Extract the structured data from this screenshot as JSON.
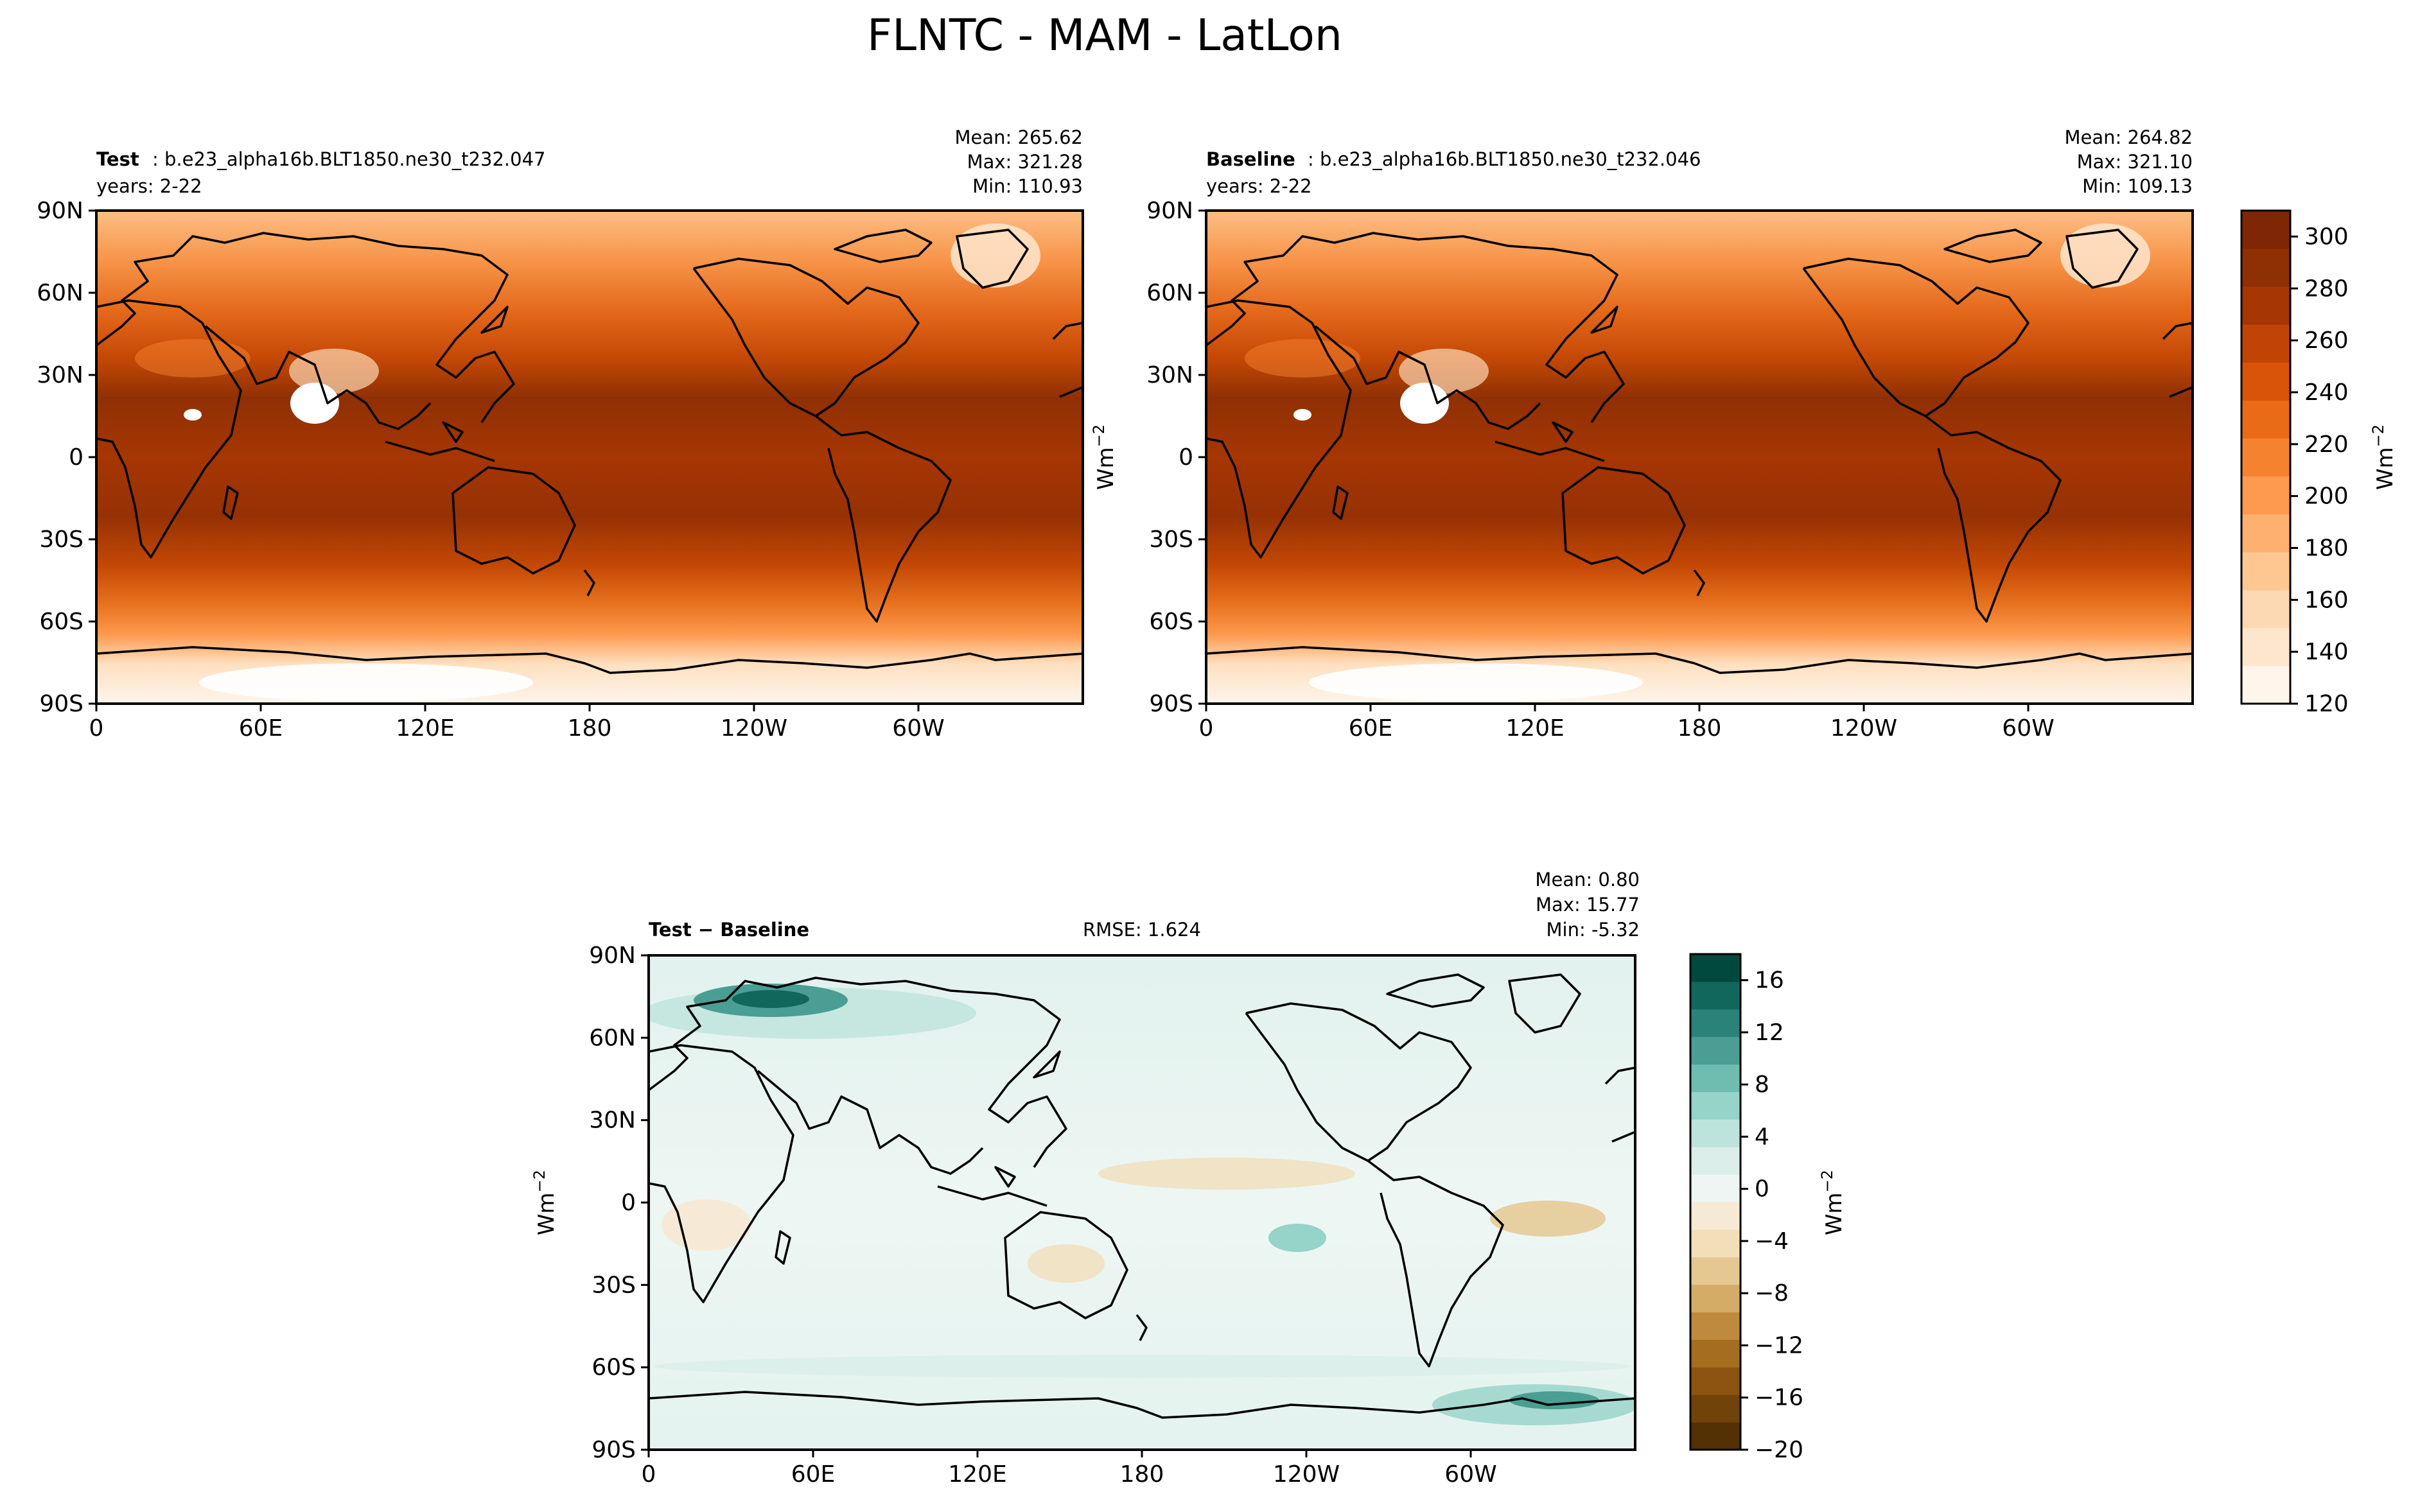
{
  "figure_title": "FLNTC - MAM - LatLon",
  "panels": [
    {
      "id": "test",
      "label_bold": "Test",
      "label_rest": ": b.e23_alpha16b.BLT1850.ne30_t232.047",
      "years": "years: 2-22",
      "stats": [
        "Mean: 265.62",
        "Max: 321.28",
        "Min: 110.93"
      ],
      "ylabel": "",
      "rmse": ""
    },
    {
      "id": "baseline",
      "label_bold": "Baseline",
      "label_rest": ": b.e23_alpha16b.BLT1850.ne30_t232.046",
      "years": "years: 2-22",
      "stats": [
        "Mean: 264.82",
        "Max: 321.10",
        "Min: 109.13"
      ],
      "ylabel": "Wm",
      "rmse": ""
    },
    {
      "id": "diff",
      "label_bold": "Test − Baseline",
      "label_rest": "",
      "years": "",
      "stats": [
        "Mean:  0.80",
        "Max: 15.77",
        "Min: -5.32"
      ],
      "ylabel": "Wm",
      "rmse": "RMSE: 1.624"
    }
  ],
  "colorbar_main": {
    "label": "Wm",
    "ticks": [
      "120",
      "140",
      "160",
      "180",
      "200",
      "220",
      "240",
      "260",
      "280",
      "300"
    ],
    "range": [
      120,
      310
    ],
    "colors": [
      "#fff5eb",
      "#fee6ce",
      "#fdd9b3",
      "#fdc791",
      "#fdb06f",
      "#fd9a4f",
      "#f5822f",
      "#e96a17",
      "#d95309",
      "#c04405",
      "#a63603",
      "#8f3004",
      "#7f2704"
    ]
  },
  "colorbar_diff": {
    "label": "Wm",
    "ticks": [
      "16",
      "12",
      "8",
      "4",
      "0",
      "−4",
      "−8",
      "−12",
      "−16",
      "−20"
    ],
    "range": [
      -20,
      18
    ],
    "colors": [
      "#543005",
      "#72420b",
      "#8c5410",
      "#a56d20",
      "#bf8a3d",
      "#d4ac67",
      "#e5c891",
      "#f2dfb9",
      "#f6ead6",
      "#eef5f2",
      "#dbeeea",
      "#bde4dc",
      "#96d3c8",
      "#6fbdb0",
      "#4a9e93",
      "#2b8278",
      "#12675d",
      "#01493f"
    ]
  },
  "chart_data": [
    {
      "type": "heatmap",
      "title": "Test: b.e23_alpha16b.BLT1850.ne30_t232.047",
      "variable": "FLNTC",
      "x_ticks": [
        "0",
        "60E",
        "120E",
        "180",
        "120W",
        "60W"
      ],
      "y_ticks": [
        "90N",
        "60N",
        "30N",
        "0",
        "30S",
        "60S",
        "90S"
      ],
      "xlim": [
        0,
        360
      ],
      "ylim": [
        -90,
        90
      ],
      "colorbar_range": [
        120,
        310
      ],
      "zonal_profile": {
        "lat": [
          90,
          75,
          60,
          45,
          30,
          15,
          0,
          -15,
          -30,
          -45,
          -60,
          -75,
          -90
        ],
        "value": [
          185,
          205,
          225,
          245,
          272,
          292,
          282,
          292,
          278,
          255,
          230,
          170,
          130
        ]
      }
    },
    {
      "type": "heatmap",
      "title": "Baseline: b.e23_alpha16b.BLT1850.ne30_t232.046",
      "variable": "FLNTC",
      "x_ticks": [
        "0",
        "60E",
        "120E",
        "180",
        "120W",
        "60W"
      ],
      "y_ticks": [
        "90N",
        "60N",
        "30N",
        "0",
        "30S",
        "60S",
        "90S"
      ],
      "xlim": [
        0,
        360
      ],
      "ylim": [
        -90,
        90
      ],
      "colorbar_range": [
        120,
        310
      ],
      "zonal_profile": {
        "lat": [
          90,
          75,
          60,
          45,
          30,
          15,
          0,
          -15,
          -30,
          -45,
          -60,
          -75,
          -90
        ],
        "value": [
          184,
          204,
          224,
          244,
          271,
          291,
          281,
          291,
          277,
          254,
          229,
          169,
          128
        ]
      }
    },
    {
      "type": "heatmap",
      "title": "Test − Baseline",
      "variable": "FLNTC",
      "x_ticks": [
        "0",
        "60E",
        "120E",
        "180",
        "120W",
        "60W"
      ],
      "y_ticks": [
        "90N",
        "60N",
        "30N",
        "0",
        "30S",
        "60S",
        "90S"
      ],
      "xlim": [
        0,
        360
      ],
      "ylim": [
        -90,
        90
      ],
      "colorbar_range": [
        -20,
        18
      ],
      "features": [
        {
          "lon": 45,
          "lat": 75,
          "value": 14
        },
        {
          "lon": 300,
          "lat": -73,
          "value": 8
        },
        {
          "lon": 235,
          "lat": -5,
          "value": 3
        },
        {
          "lon": 200,
          "lat": 20,
          "value": -2
        },
        {
          "lon": 330,
          "lat": -3,
          "value": -4
        }
      ]
    }
  ]
}
